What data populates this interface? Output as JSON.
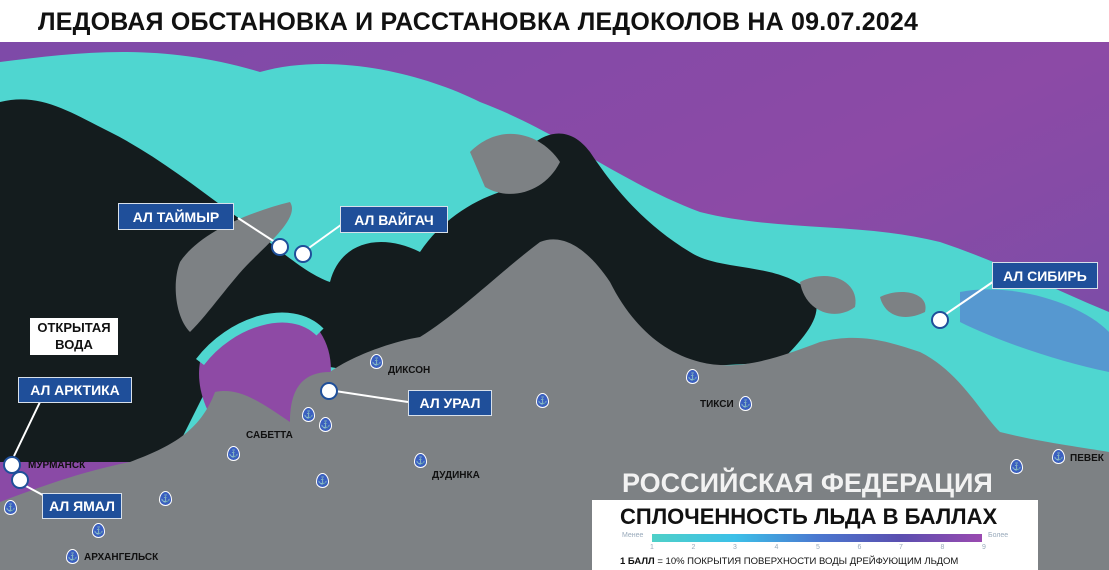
{
  "title": "ЛЕДОВАЯ ОБСТАНОВКА И РАССТАНОВКА ЛЕДОКОЛОВ НА 09.07.2024",
  "colors": {
    "open_water": "#141c1e",
    "land": "#7d8184",
    "ice_low": "#4fd6d0",
    "ice_high": "#8e4aa5",
    "label_box": "#1f4f9a"
  },
  "icebreakers": [
    {
      "label": "АЛ ТАЙМЫР"
    },
    {
      "label": "АЛ ВАЙГАЧ"
    },
    {
      "label": "АЛ СИБИРЬ"
    },
    {
      "label": "АЛ АРКТИКА"
    },
    {
      "label": "АЛ ЯМАЛ"
    },
    {
      "label": "АЛ УРАЛ"
    }
  ],
  "open_water_label": {
    "line1": "ОТКРЫТАЯ",
    "line2": "ВОДА"
  },
  "cities": [
    "МУРМАНСК",
    "АРХАНГЕЛЬСК",
    "САБЕТТА",
    "ДИКСОН",
    "ДУДИНКА",
    "ТИКСИ",
    "ПЕВЕК"
  ],
  "country_label": "РОССИЙСКАЯ ФЕДЕРАЦИЯ",
  "legend": {
    "title": "СПЛОЧЕННОСТЬ ЛЬДА В БАЛЛАХ",
    "low": "Менее",
    "high": "Более",
    "ticks": [
      "1",
      "2",
      "3",
      "4",
      "5",
      "6",
      "7",
      "8",
      "9"
    ],
    "note_bold": "1 БАЛЛ",
    "note": " = 10% ПОКРЫТИЯ ПОВЕРХНОСТИ ВОДЫ ДРЕЙФУЮЩИМ ЛЬДОМ"
  }
}
